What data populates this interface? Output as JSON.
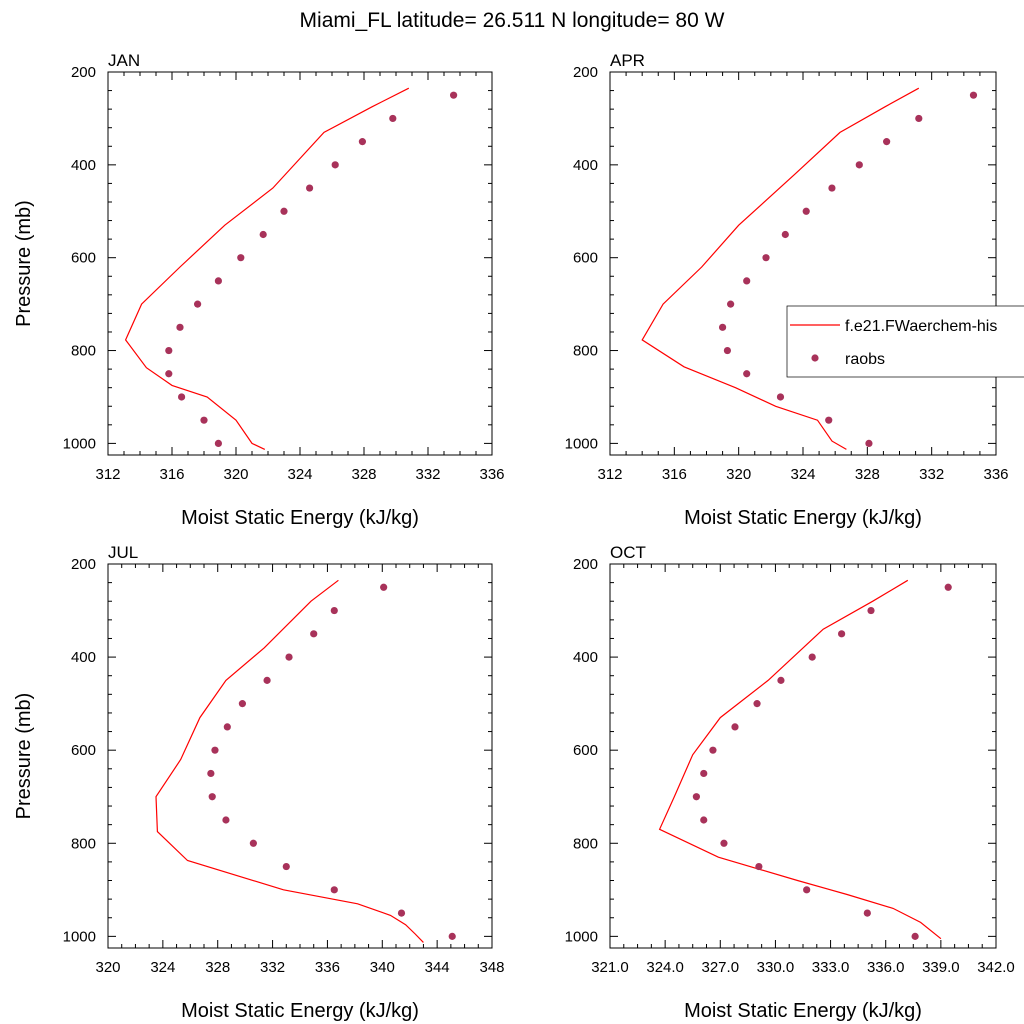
{
  "figure": {
    "title": "Miami_FL  latitude= 26.511 N longitude= 80 W",
    "legend": {
      "entries": [
        "f.e21.FWaerchem-his",
        "raobs"
      ],
      "placement": "right of APR panel"
    }
  },
  "colors": {
    "model_line": "#ff0000",
    "raobs_marker": "#a8325a"
  },
  "chart_data": [
    {
      "type": "line",
      "title": "JAN",
      "xlabel": "Moist Static Energy (kJ/kg)",
      "ylabel": "Pressure (mb)",
      "xlim": [
        312,
        336
      ],
      "ylim": [
        1025,
        200
      ],
      "y_inverted": true,
      "xticks": [
        "312",
        "316",
        "320",
        "324",
        "328",
        "332",
        "336"
      ],
      "yticks": [
        "200",
        "400",
        "600",
        "800",
        "1000"
      ],
      "model": {
        "name": "f.e21.FWaerchem-his",
        "x": [
          321.8,
          321.0,
          320.0,
          318.2,
          316.0,
          314.4,
          313.1,
          314.1,
          316.5,
          319.3,
          322.3,
          325.5,
          328.5,
          330.8
        ],
        "y": [
          1013,
          1000,
          950,
          900,
          875,
          837,
          777,
          700,
          620,
          530,
          450,
          330,
          275,
          235
        ]
      },
      "raobs": {
        "name": "raobs",
        "x": [
          318.9,
          318.0,
          316.6,
          315.8,
          315.8,
          316.5,
          317.6,
          318.9,
          320.3,
          321.7,
          323.0,
          324.6,
          326.2,
          327.9,
          329.8,
          333.6
        ],
        "y": [
          1000,
          950,
          900,
          850,
          800,
          750,
          700,
          650,
          600,
          550,
          500,
          450,
          400,
          350,
          300,
          250
        ]
      }
    },
    {
      "type": "line",
      "title": "APR",
      "xlabel": "Moist Static Energy (kJ/kg)",
      "ylabel": "",
      "xlim": [
        312,
        336
      ],
      "ylim": [
        1025,
        200
      ],
      "y_inverted": true,
      "xticks": [
        "312",
        "316",
        "320",
        "324",
        "328",
        "332",
        "336"
      ],
      "yticks": [
        "200",
        "400",
        "600",
        "800",
        "1000"
      ],
      "model": {
        "name": "f.e21.FWaerchem-his",
        "x": [
          326.7,
          325.8,
          324.9,
          322.3,
          319.8,
          316.6,
          314.0,
          315.3,
          317.7,
          320.0,
          323.5,
          326.3,
          329.1,
          331.2
        ],
        "y": [
          1013,
          995,
          950,
          920,
          880,
          835,
          777,
          700,
          620,
          530,
          420,
          330,
          275,
          235
        ]
      },
      "raobs": {
        "name": "raobs",
        "x": [
          328.1,
          325.6,
          322.6,
          320.5,
          319.3,
          319.0,
          319.5,
          320.5,
          321.7,
          322.9,
          324.2,
          325.8,
          327.5,
          329.2,
          331.2,
          334.6
        ],
        "y": [
          1000,
          950,
          900,
          850,
          800,
          750,
          700,
          650,
          600,
          550,
          500,
          450,
          400,
          350,
          300,
          250
        ]
      }
    },
    {
      "type": "line",
      "title": "JUL",
      "xlabel": "Moist Static Energy (kJ/kg)",
      "ylabel": "Pressure (mb)",
      "xlim": [
        320,
        348
      ],
      "ylim": [
        1025,
        200
      ],
      "y_inverted": true,
      "xticks": [
        "320",
        "324",
        "328",
        "332",
        "336",
        "340",
        "344",
        "348"
      ],
      "yticks": [
        "200",
        "400",
        "600",
        "800",
        "1000"
      ],
      "model": {
        "name": "f.e21.FWaerchem-his",
        "x": [
          343.0,
          342.4,
          341.7,
          340.6,
          338.2,
          332.8,
          325.8,
          323.6,
          323.5,
          325.3,
          326.7,
          328.6,
          331.4,
          334.8,
          336.8
        ],
        "y": [
          1013,
          995,
          975,
          955,
          930,
          900,
          837,
          775,
          700,
          620,
          530,
          450,
          380,
          280,
          235
        ]
      },
      "raobs": {
        "name": "raobs",
        "x": [
          345.1,
          341.4,
          336.5,
          333.0,
          330.6,
          328.6,
          327.6,
          327.5,
          327.8,
          328.7,
          329.8,
          331.6,
          333.2,
          335.0,
          336.5,
          340.1
        ],
        "y": [
          1000,
          950,
          900,
          850,
          800,
          750,
          700,
          650,
          600,
          550,
          500,
          450,
          400,
          350,
          300,
          250
        ]
      }
    },
    {
      "type": "line",
      "title": "OCT",
      "xlabel": "Moist Static Energy (kJ/kg)",
      "ylabel": "",
      "xlim": [
        321,
        342
      ],
      "ylim": [
        1025,
        200
      ],
      "y_inverted": true,
      "xticks": [
        "321.0",
        "324.0",
        "327.0",
        "330.0",
        "333.0",
        "336.0",
        "339.0",
        "342.0"
      ],
      "yticks": [
        "200",
        "400",
        "600",
        "800",
        "1000"
      ],
      "model": {
        "name": "f.e21.FWaerchem-his",
        "x": [
          339.0,
          337.9,
          336.4,
          333.9,
          331.2,
          326.9,
          323.7,
          324.5,
          325.5,
          327.0,
          329.6,
          332.6,
          335.3,
          337.2
        ],
        "y": [
          1005,
          970,
          940,
          910,
          880,
          830,
          770,
          700,
          610,
          530,
          450,
          340,
          280,
          235
        ]
      },
      "raobs": {
        "name": "raobs",
        "x": [
          337.6,
          335.0,
          331.7,
          329.1,
          327.2,
          326.1,
          325.7,
          326.1,
          326.6,
          327.8,
          329.0,
          330.3,
          332.0,
          333.6,
          335.2,
          339.4
        ],
        "y": [
          1000,
          950,
          900,
          850,
          800,
          750,
          700,
          650,
          600,
          550,
          500,
          450,
          400,
          350,
          300,
          250
        ]
      }
    }
  ]
}
